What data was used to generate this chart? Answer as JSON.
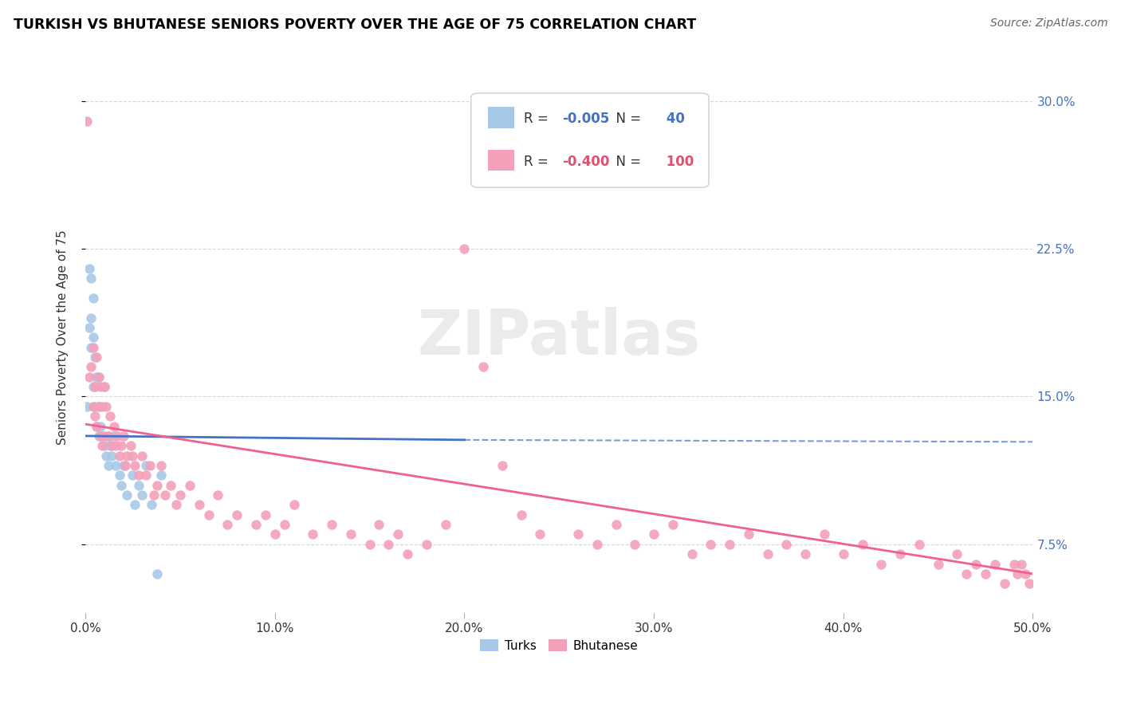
{
  "title": "TURKISH VS BHUTANESE SENIORS POVERTY OVER THE AGE OF 75 CORRELATION CHART",
  "source": "Source: ZipAtlas.com",
  "ylabel": "Seniors Poverty Over the Age of 75",
  "xlim": [
    0.0,
    0.5
  ],
  "ylim": [
    0.04,
    0.32
  ],
  "xticks": [
    0.0,
    0.1,
    0.2,
    0.3,
    0.4,
    0.5
  ],
  "xticklabels": [
    "0.0%",
    "10.0%",
    "20.0%",
    "30.0%",
    "40.0%",
    "50.0%"
  ],
  "yticks_right": [
    0.075,
    0.15,
    0.225,
    0.3
  ],
  "yticks_right_labels": [
    "7.5%",
    "15.0%",
    "22.5%",
    "30.0%"
  ],
  "turks_color": "#a8c8e8",
  "bhutanese_color": "#f4a0b8",
  "turks_line_color": "#4472c4",
  "bhutanese_line_color": "#f06090",
  "turks_R": -0.005,
  "turks_N": 40,
  "bhutanese_R": -0.4,
  "bhutanese_N": 100,
  "legend_label_turks": "Turks",
  "legend_label_bhutanese": "Bhutanese",
  "watermark": "ZIPatlas",
  "bg_color": "#ffffff",
  "grid_color": "#d8d8d8",
  "turks_scatter_x": [
    0.001,
    0.002,
    0.002,
    0.003,
    0.003,
    0.003,
    0.004,
    0.004,
    0.004,
    0.005,
    0.005,
    0.005,
    0.006,
    0.006,
    0.007,
    0.007,
    0.007,
    0.008,
    0.009,
    0.01,
    0.01,
    0.011,
    0.012,
    0.012,
    0.013,
    0.014,
    0.015,
    0.016,
    0.018,
    0.019,
    0.02,
    0.022,
    0.025,
    0.026,
    0.028,
    0.03,
    0.032,
    0.035,
    0.038,
    0.04
  ],
  "turks_scatter_y": [
    0.145,
    0.215,
    0.185,
    0.21,
    0.19,
    0.175,
    0.2,
    0.18,
    0.155,
    0.17,
    0.155,
    0.145,
    0.16,
    0.135,
    0.16,
    0.145,
    0.13,
    0.135,
    0.13,
    0.155,
    0.125,
    0.12,
    0.13,
    0.115,
    0.125,
    0.12,
    0.13,
    0.115,
    0.11,
    0.105,
    0.115,
    0.1,
    0.11,
    0.095,
    0.105,
    0.1,
    0.115,
    0.095,
    0.06,
    0.11
  ],
  "bhutanese_scatter_x": [
    0.001,
    0.002,
    0.003,
    0.004,
    0.004,
    0.005,
    0.005,
    0.006,
    0.006,
    0.007,
    0.007,
    0.008,
    0.008,
    0.009,
    0.009,
    0.01,
    0.01,
    0.011,
    0.012,
    0.013,
    0.014,
    0.015,
    0.016,
    0.017,
    0.018,
    0.019,
    0.02,
    0.021,
    0.022,
    0.024,
    0.025,
    0.026,
    0.028,
    0.03,
    0.032,
    0.034,
    0.036,
    0.038,
    0.04,
    0.042,
    0.045,
    0.048,
    0.05,
    0.055,
    0.06,
    0.065,
    0.07,
    0.075,
    0.08,
    0.09,
    0.095,
    0.1,
    0.105,
    0.11,
    0.12,
    0.13,
    0.14,
    0.15,
    0.155,
    0.16,
    0.165,
    0.17,
    0.18,
    0.19,
    0.2,
    0.21,
    0.22,
    0.23,
    0.24,
    0.26,
    0.27,
    0.28,
    0.29,
    0.3,
    0.31,
    0.32,
    0.33,
    0.34,
    0.35,
    0.36,
    0.37,
    0.38,
    0.39,
    0.4,
    0.41,
    0.42,
    0.43,
    0.44,
    0.45,
    0.46,
    0.465,
    0.47,
    0.475,
    0.48,
    0.485,
    0.49,
    0.492,
    0.494,
    0.496,
    0.498
  ],
  "bhutanese_scatter_y": [
    0.29,
    0.16,
    0.165,
    0.175,
    0.145,
    0.155,
    0.14,
    0.17,
    0.135,
    0.16,
    0.145,
    0.155,
    0.13,
    0.145,
    0.125,
    0.155,
    0.13,
    0.145,
    0.13,
    0.14,
    0.125,
    0.135,
    0.125,
    0.13,
    0.12,
    0.125,
    0.13,
    0.115,
    0.12,
    0.125,
    0.12,
    0.115,
    0.11,
    0.12,
    0.11,
    0.115,
    0.1,
    0.105,
    0.115,
    0.1,
    0.105,
    0.095,
    0.1,
    0.105,
    0.095,
    0.09,
    0.1,
    0.085,
    0.09,
    0.085,
    0.09,
    0.08,
    0.085,
    0.095,
    0.08,
    0.085,
    0.08,
    0.075,
    0.085,
    0.075,
    0.08,
    0.07,
    0.075,
    0.085,
    0.225,
    0.165,
    0.115,
    0.09,
    0.08,
    0.08,
    0.075,
    0.085,
    0.075,
    0.08,
    0.085,
    0.07,
    0.075,
    0.075,
    0.08,
    0.07,
    0.075,
    0.07,
    0.08,
    0.07,
    0.075,
    0.065,
    0.07,
    0.075,
    0.065,
    0.07,
    0.06,
    0.065,
    0.06,
    0.065,
    0.055,
    0.065,
    0.06,
    0.065,
    0.06,
    0.055
  ],
  "turks_line_x": [
    0.0,
    0.2
  ],
  "turks_line_y_start": 0.13,
  "turks_line_y_end": 0.128,
  "bhu_line_x": [
    0.0,
    0.5
  ],
  "bhu_line_y_start": 0.136,
  "bhu_line_y_end": 0.06
}
